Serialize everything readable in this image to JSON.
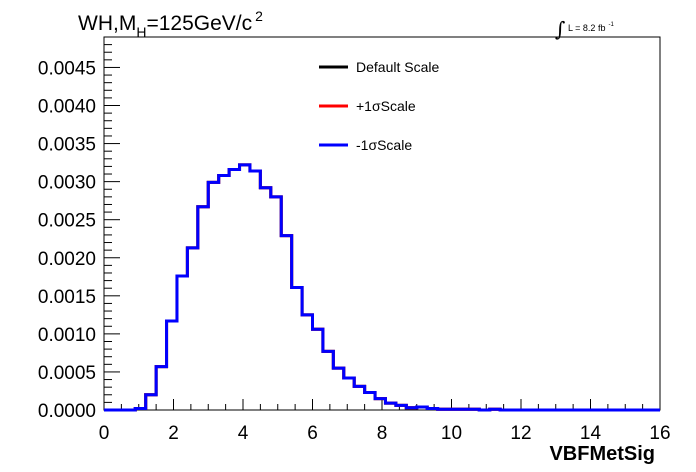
{
  "chart_data": {
    "type": "histogram",
    "title": "WH,M",
    "title_subscript": "H",
    "title_suffix": "=125GeV/c",
    "title_superscript": "2",
    "lumi_label": "L = 8.2 fb",
    "lumi_superscript": "-1",
    "xlabel": "VBFMetSig",
    "ylabel": "",
    "xlim": [
      0,
      16
    ],
    "ylim": [
      0,
      0.0049
    ],
    "x_ticks": [
      0,
      2,
      4,
      6,
      8,
      10,
      12,
      14,
      16
    ],
    "x_tick_labels": [
      "0",
      "2",
      "4",
      "6",
      "8",
      "10",
      "12",
      "14",
      "16"
    ],
    "y_ticks": [
      0,
      0.0005,
      0.001,
      0.0015,
      0.002,
      0.0025,
      0.003,
      0.0035,
      0.004,
      0.0045
    ],
    "y_tick_labels": [
      "0.0000",
      "0.0005",
      "0.0010",
      "0.0015",
      "0.0020",
      "0.0025",
      "0.0030",
      "0.0035",
      "0.0040",
      "0.0045"
    ],
    "bin_width": 0.3,
    "bin_edges_start": 0.0,
    "series": [
      {
        "name": "Default Scale",
        "color": "#000000",
        "values": [
          0.0,
          0.0,
          0.0,
          2e-05,
          0.0002,
          0.00057,
          0.00117,
          0.00176,
          0.00213,
          0.00267,
          0.00299,
          0.00308,
          0.00316,
          0.00322,
          0.00314,
          0.00292,
          0.0028,
          0.00229,
          0.00161,
          0.00125,
          0.00106,
          0.00077,
          0.00055,
          0.00042,
          0.00031,
          0.00023,
          0.00015,
          9e-05,
          6e-05,
          3e-05,
          4e-05,
          2e-05,
          1e-05,
          1e-05,
          1e-05,
          1e-05,
          0.0,
          1e-05,
          0.0,
          0.0,
          0.0,
          0.0,
          0.0,
          0.0,
          0.0,
          0.0,
          0.0,
          0.0,
          0.0,
          0.0,
          0.0,
          0.0,
          0.0,
          0.0
        ]
      },
      {
        "name": "+1σScale",
        "color": "#ff0000",
        "values": [
          0.0,
          0.0,
          0.0,
          2e-05,
          0.0002,
          0.00057,
          0.00117,
          0.00176,
          0.00213,
          0.00267,
          0.00299,
          0.00308,
          0.00316,
          0.00322,
          0.00314,
          0.00292,
          0.0028,
          0.00229,
          0.00161,
          0.00125,
          0.00106,
          0.00077,
          0.00055,
          0.00042,
          0.00031,
          0.00023,
          0.00015,
          9e-05,
          6e-05,
          3e-05,
          4e-05,
          2e-05,
          1e-05,
          1e-05,
          1e-05,
          1e-05,
          0.0,
          1e-05,
          0.0,
          0.0,
          0.0,
          0.0,
          0.0,
          0.0,
          0.0,
          0.0,
          0.0,
          0.0,
          0.0,
          0.0,
          0.0,
          0.0,
          0.0,
          0.0
        ]
      },
      {
        "name": "-1σScale",
        "color": "#0000ff",
        "values": [
          0.0,
          0.0,
          0.0,
          2e-05,
          0.0002,
          0.00057,
          0.00117,
          0.00176,
          0.00213,
          0.00267,
          0.00299,
          0.00308,
          0.00316,
          0.00322,
          0.00314,
          0.00292,
          0.0028,
          0.00229,
          0.00161,
          0.00125,
          0.00106,
          0.00077,
          0.00055,
          0.00042,
          0.00031,
          0.00023,
          0.00015,
          9e-05,
          6e-05,
          3e-05,
          4e-05,
          2e-05,
          1e-05,
          1e-05,
          1e-05,
          1e-05,
          0.0,
          1e-05,
          0.0,
          0.0,
          0.0,
          0.0,
          0.0,
          0.0,
          0.0,
          0.0,
          0.0,
          0.0,
          0.0,
          0.0,
          0.0,
          0.0,
          0.0,
          0.0
        ]
      }
    ],
    "legend": {
      "position": "top-center",
      "entries": [
        "Default Scale",
        "+1σScale",
        "-1σScale"
      ]
    },
    "grid": false
  }
}
